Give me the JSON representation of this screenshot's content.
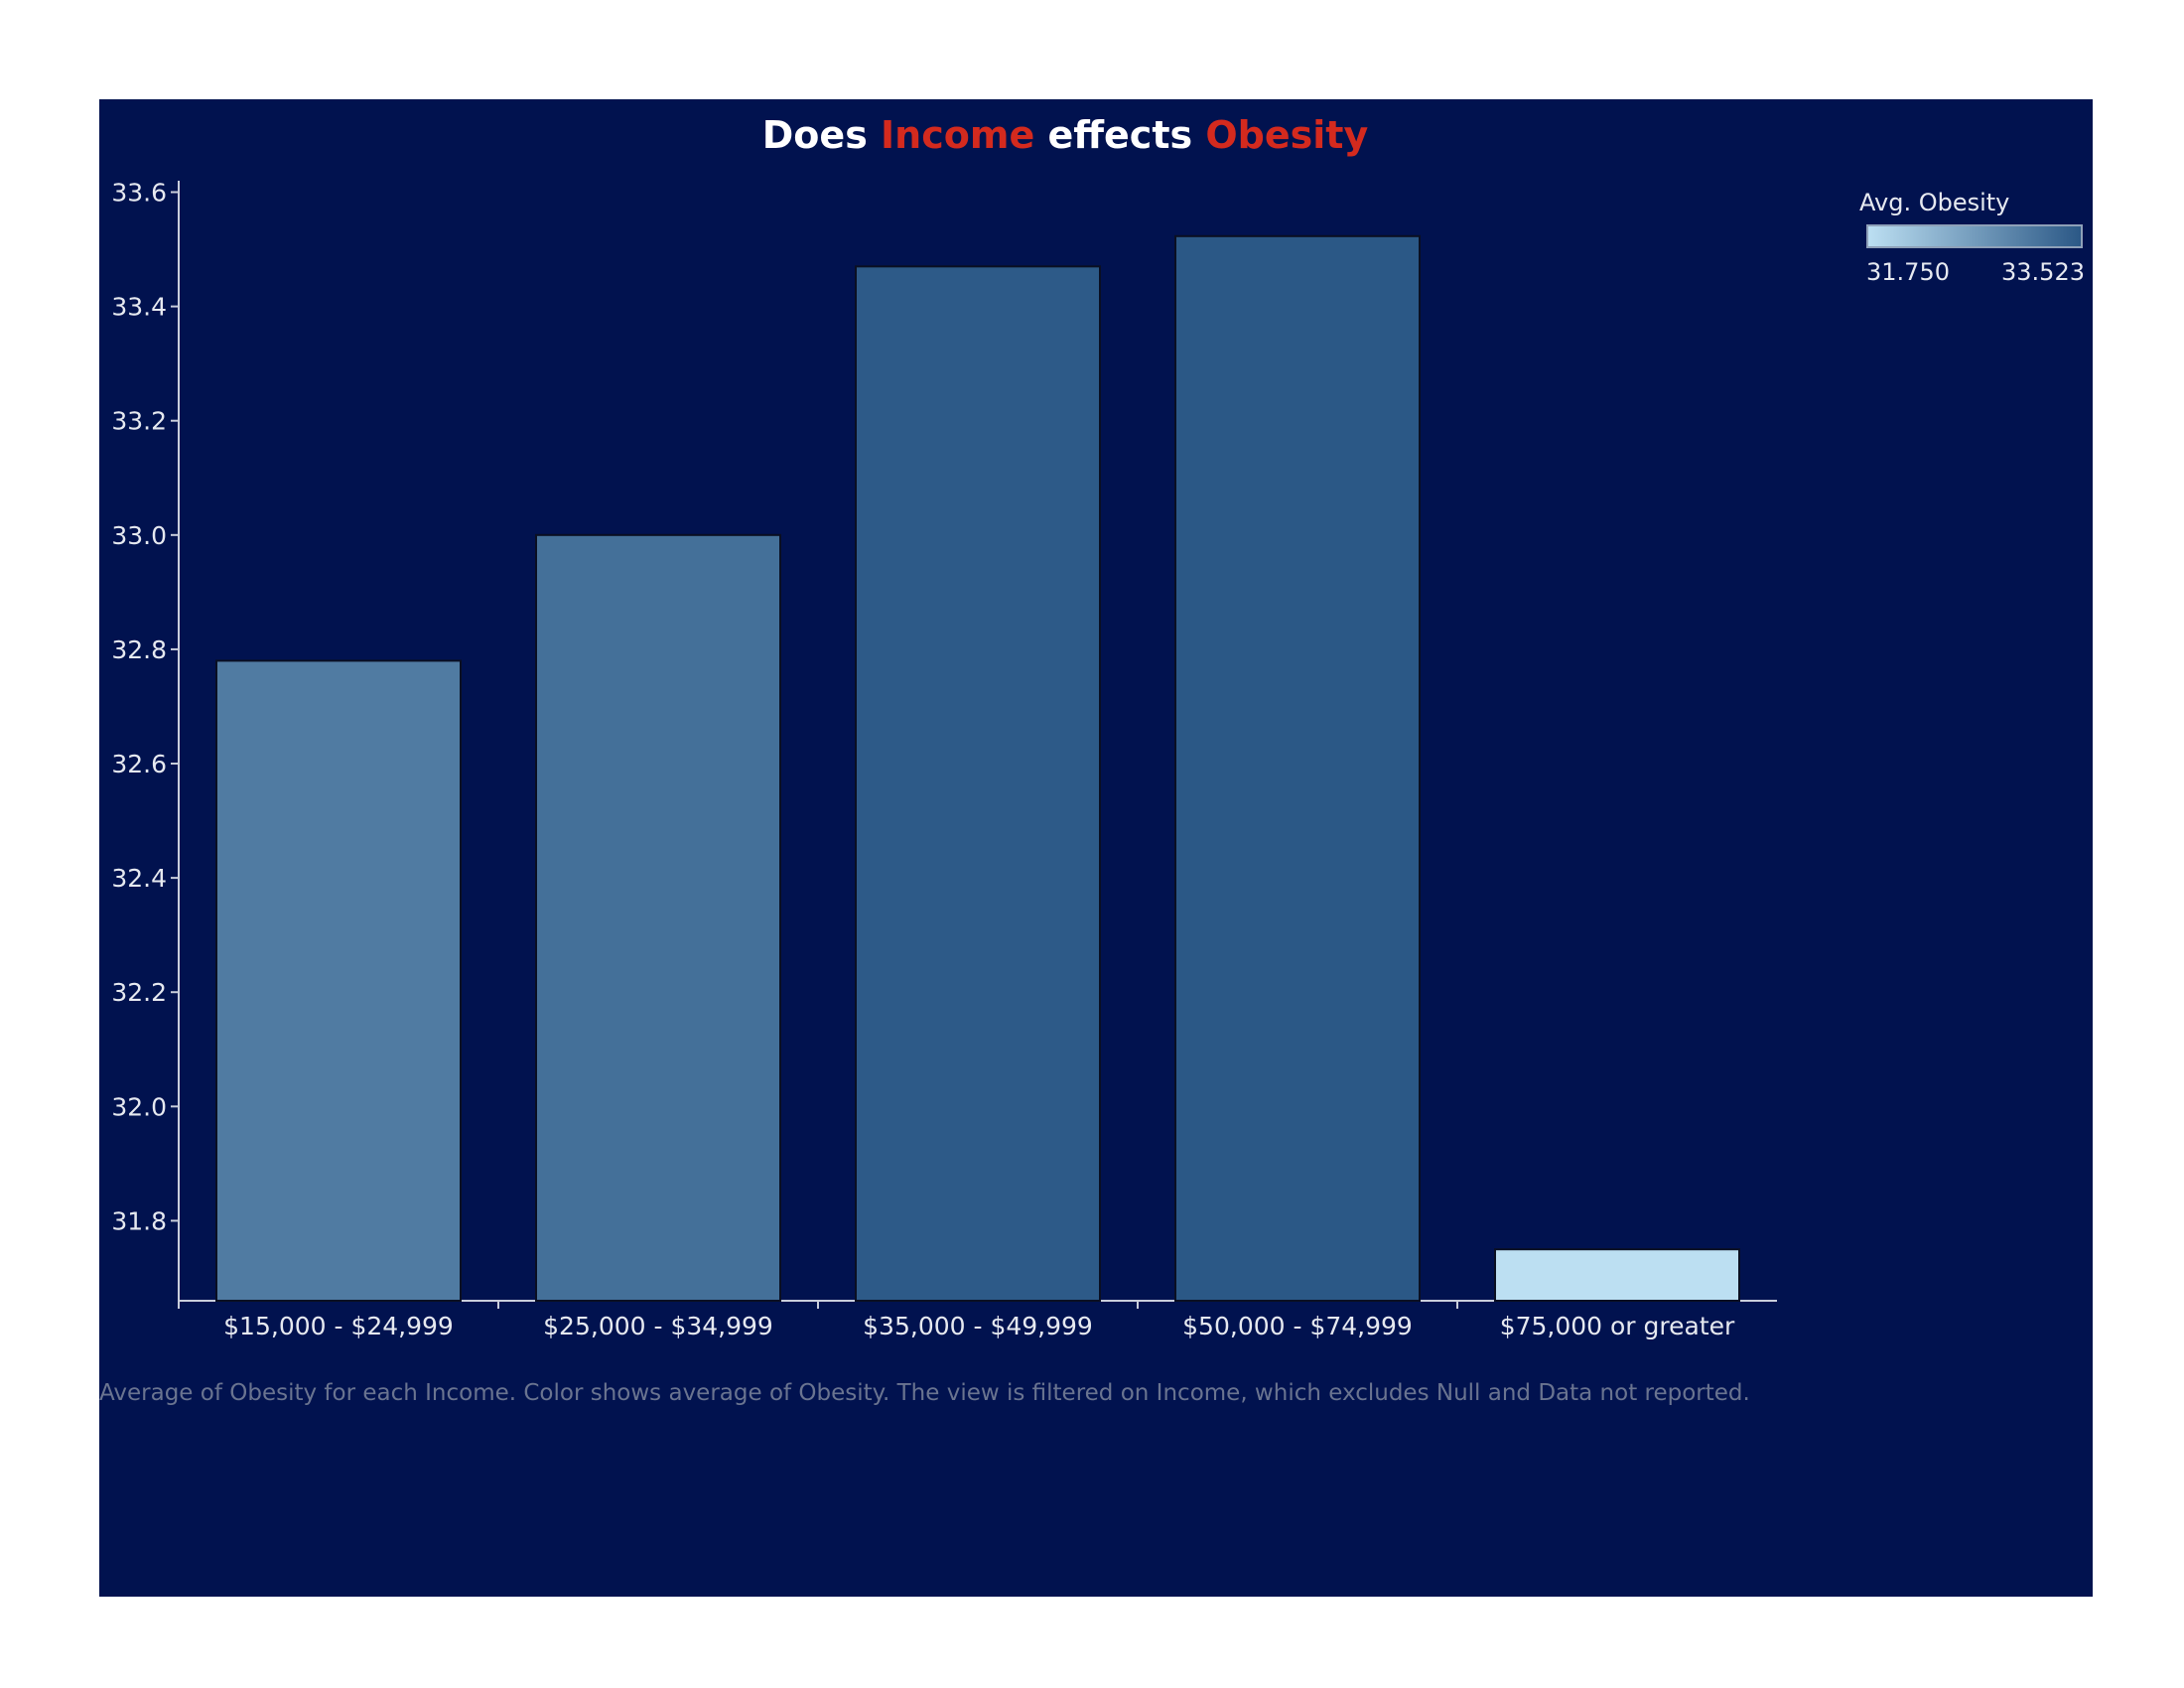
{
  "title": {
    "parts": [
      {
        "text": "Does ",
        "accent": false
      },
      {
        "text": "Income",
        "accent": true
      },
      {
        "text": " effects ",
        "accent": false
      },
      {
        "text": "Obesity",
        "accent": true
      }
    ]
  },
  "colors": {
    "background": "#01124f",
    "accent": "#d42a1e",
    "ramp_low": "#bcdff2",
    "ramp_high": "#2b5886"
  },
  "legend": {
    "title": "Avg. Obesity",
    "min_label": "31.750",
    "max_label": "33.523",
    "position": "top-right"
  },
  "caption": "Average of Obesity for each Income.  Color shows average of Obesity. The view is filtered on Income, which excludes Null and Data not reported.",
  "chart_data": {
    "type": "bar",
    "title": "Does Income effects Obesity",
    "xlabel": "",
    "ylabel": "",
    "categories": [
      "$15,000 - $24,999",
      "$25,000 - $34,999",
      "$35,000 - $49,999",
      "$50,000 - $74,999",
      "$75,000 or greater"
    ],
    "values": [
      32.78,
      33.0,
      33.47,
      33.523,
      31.75
    ],
    "ylim": [
      31.66,
      33.62
    ],
    "yticks": [
      31.8,
      32.0,
      32.2,
      32.4,
      32.6,
      32.8,
      33.0,
      33.2,
      33.4,
      33.6
    ],
    "ytick_labels": [
      "31.8",
      "32.0",
      "32.2",
      "32.4",
      "32.6",
      "32.8",
      "33.0",
      "33.2",
      "33.4",
      "33.6"
    ],
    "color_range": [
      31.75,
      33.523
    ],
    "grid": false
  }
}
